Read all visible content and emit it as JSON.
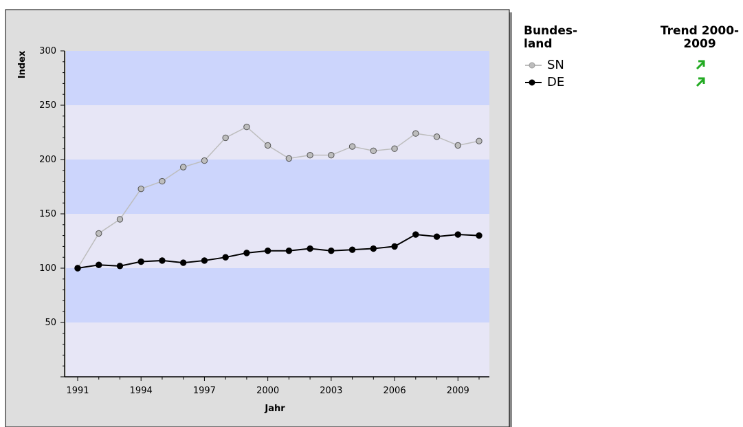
{
  "chart_data": {
    "type": "line",
    "xlabel": "Jahr",
    "ylabel": "Index",
    "x": [
      1991,
      1992,
      1993,
      1994,
      1995,
      1996,
      1997,
      1998,
      1999,
      2000,
      2001,
      2002,
      2003,
      2004,
      2005,
      2006,
      2007,
      2008,
      2009,
      2010
    ],
    "x_ticks": [
      "1991",
      "1994",
      "1997",
      "2000",
      "2003",
      "2006",
      "2009"
    ],
    "y_ticks": [
      "50",
      "100",
      "150",
      "200",
      "250",
      "300"
    ],
    "ylim": [
      0,
      300
    ],
    "grid": "alternating horizontal bands every 50",
    "series": [
      {
        "name": "SN",
        "color": "#bdbdbd",
        "values": [
          100,
          132,
          145,
          173,
          180,
          193,
          199,
          220,
          230,
          213,
          201,
          204,
          204,
          212,
          208,
          210,
          224,
          221,
          213,
          217
        ]
      },
      {
        "name": "DE",
        "color": "#000000",
        "values": [
          100,
          103,
          102,
          106,
          107,
          105,
          107,
          110,
          114,
          116,
          116,
          118,
          116,
          117,
          118,
          120,
          131,
          129,
          131,
          130
        ]
      }
    ],
    "legend": {
      "col_left": "Bundes-\nland",
      "col_right": "Trend 2000-2009",
      "entries": [
        {
          "label": "SN",
          "trend": "up",
          "trend_color": "#22aa22"
        },
        {
          "label": "DE",
          "trend": "up",
          "trend_color": "#22aa22"
        }
      ]
    }
  }
}
